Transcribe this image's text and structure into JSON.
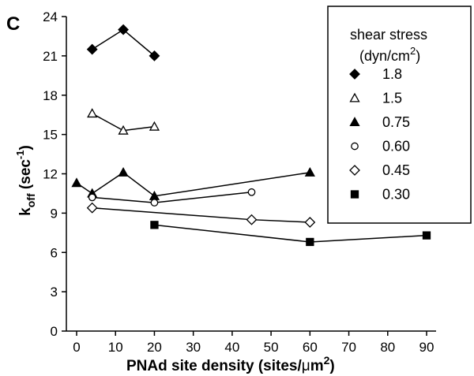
{
  "chart_data": {
    "type": "line",
    "panel_label": "C",
    "title": "",
    "xlabel": "PNAd site density (sites/μm²)",
    "ylabel": "k_off (sec⁻¹)",
    "xlim": [
      0,
      90
    ],
    "ylim": [
      0,
      24
    ],
    "x_ticks": [
      0,
      10,
      20,
      30,
      40,
      50,
      60,
      70,
      80,
      90
    ],
    "y_ticks": [
      0,
      3,
      6,
      9,
      12,
      15,
      18,
      21,
      24
    ],
    "grid": false,
    "legend": {
      "title_line1": "shear stress",
      "title_line2": "(dyn/cm²)",
      "placement": "top-right"
    },
    "series": [
      {
        "name": "1.8",
        "marker": "diamond-filled",
        "x": [
          4,
          12,
          20
        ],
        "y": [
          21.5,
          23.0,
          21.0
        ]
      },
      {
        "name": "1.5",
        "marker": "triangle-open",
        "x": [
          4,
          12,
          20
        ],
        "y": [
          16.6,
          15.3,
          15.6
        ]
      },
      {
        "name": "0.75",
        "marker": "triangle-filled",
        "x": [
          0,
          4,
          12,
          20,
          60
        ],
        "y": [
          11.3,
          10.5,
          12.1,
          10.3,
          12.1
        ]
      },
      {
        "name": "0.60",
        "marker": "circle-open",
        "x": [
          4,
          20,
          45
        ],
        "y": [
          10.2,
          9.8,
          10.6
        ]
      },
      {
        "name": "0.45",
        "marker": "diamond-open",
        "x": [
          4,
          45,
          60
        ],
        "y": [
          9.4,
          8.5,
          8.3
        ]
      },
      {
        "name": "0.30",
        "marker": "square-filled",
        "x": [
          20,
          60,
          90
        ],
        "y": [
          8.1,
          6.8,
          7.3
        ]
      }
    ]
  }
}
